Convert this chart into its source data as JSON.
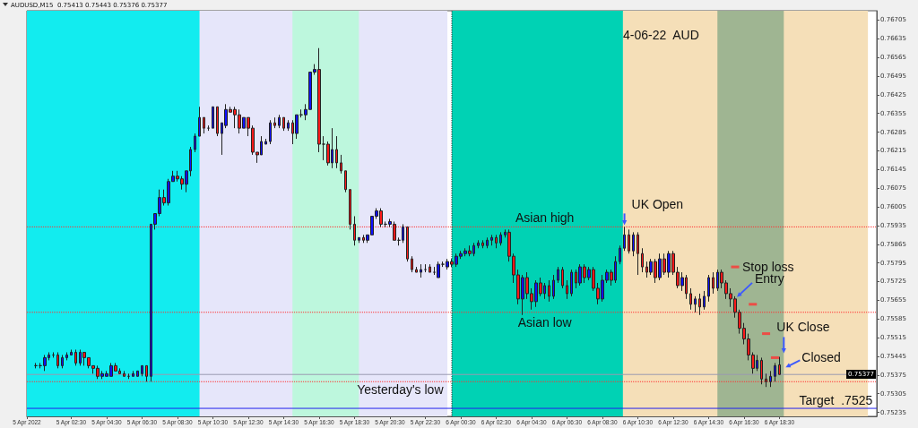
{
  "chart_data": {
    "type": "candlestick",
    "title": "4-06-22  AUD",
    "subtitle": "AUDUSD,M15  0.75413 0.75443 0.75376 0.75377",
    "x": [
      "2022-04-05T00:30",
      "2022-04-05T00:45",
      "2022-04-05T01:00",
      "2022-04-05T01:15",
      "2022-04-05T01:30",
      "2022-04-05T01:45",
      "2022-04-05T02:00",
      "2022-04-05T02:15",
      "2022-04-05T02:30",
      "2022-04-05T02:45",
      "2022-04-05T03:00",
      "2022-04-05T03:15",
      "2022-04-05T03:30",
      "2022-04-05T03:45",
      "2022-04-05T04:00",
      "2022-04-05T04:15",
      "2022-04-05T04:30",
      "2022-04-05T04:45",
      "2022-04-05T05:00",
      "2022-04-05T05:15",
      "2022-04-05T05:30",
      "2022-04-05T05:45",
      "2022-04-05T06:00",
      "2022-04-05T06:15",
      "2022-04-05T06:30",
      "2022-04-05T06:45",
      "2022-04-05T07:00",
      "2022-04-05T07:15",
      "2022-04-05T07:30",
      "2022-04-05T07:45",
      "2022-04-05T08:00",
      "2022-04-05T08:15",
      "2022-04-05T08:30",
      "2022-04-05T08:45",
      "2022-04-05T09:00",
      "2022-04-05T09:15",
      "2022-04-05T09:30",
      "2022-04-05T09:45",
      "2022-04-05T10:00",
      "2022-04-05T10:15",
      "2022-04-05T10:30",
      "2022-04-05T10:45",
      "2022-04-05T11:00",
      "2022-04-05T11:15",
      "2022-04-05T11:30",
      "2022-04-05T11:45",
      "2022-04-05T12:00",
      "2022-04-05T12:15",
      "2022-04-05T12:30",
      "2022-04-05T12:45",
      "2022-04-05T13:00",
      "2022-04-05T13:15",
      "2022-04-05T13:30",
      "2022-04-05T13:45",
      "2022-04-05T14:00",
      "2022-04-05T14:15",
      "2022-04-05T14:30",
      "2022-04-05T14:45",
      "2022-04-05T15:00",
      "2022-04-05T15:15",
      "2022-04-05T15:30",
      "2022-04-05T15:45",
      "2022-04-05T16:00",
      "2022-04-05T16:15",
      "2022-04-05T16:30",
      "2022-04-05T16:45",
      "2022-04-05T17:00",
      "2022-04-05T17:15",
      "2022-04-05T17:30",
      "2022-04-05T17:45",
      "2022-04-05T18:00",
      "2022-04-05T18:15",
      "2022-04-05T18:30",
      "2022-04-05T18:45",
      "2022-04-05T19:00",
      "2022-04-05T19:15",
      "2022-04-05T19:30",
      "2022-04-05T19:45",
      "2022-04-05T20:00",
      "2022-04-05T20:15",
      "2022-04-05T20:30",
      "2022-04-05T20:45",
      "2022-04-05T21:00",
      "2022-04-05T21:15",
      "2022-04-05T21:30",
      "2022-04-05T21:45",
      "2022-04-05T22:00",
      "2022-04-05T22:15",
      "2022-04-05T22:30",
      "2022-04-05T22:45",
      "2022-04-05T23:00",
      "2022-04-05T23:15",
      "2022-04-05T23:30",
      "2022-04-05T23:45",
      "2022-04-06T00:00",
      "2022-04-06T00:15",
      "2022-04-06T00:30",
      "2022-04-06T00:45",
      "2022-04-06T01:00",
      "2022-04-06T01:15",
      "2022-04-06T01:30",
      "2022-04-06T01:45",
      "2022-04-06T02:00",
      "2022-04-06T02:15",
      "2022-04-06T02:30",
      "2022-04-06T02:45",
      "2022-04-06T03:00",
      "2022-04-06T03:15",
      "2022-04-06T03:30",
      "2022-04-06T03:45",
      "2022-04-06T04:00",
      "2022-04-06T04:15",
      "2022-04-06T04:30",
      "2022-04-06T04:45",
      "2022-04-06T05:00",
      "2022-04-06T05:15",
      "2022-04-06T05:30",
      "2022-04-06T05:45",
      "2022-04-06T06:00",
      "2022-04-06T06:15",
      "2022-04-06T06:30",
      "2022-04-06T06:45",
      "2022-04-06T07:00",
      "2022-04-06T07:15",
      "2022-04-06T07:30",
      "2022-04-06T07:45",
      "2022-04-06T08:00",
      "2022-04-06T08:15",
      "2022-04-06T08:30",
      "2022-04-06T08:45",
      "2022-04-06T09:00",
      "2022-04-06T09:15",
      "2022-04-06T09:30",
      "2022-04-06T09:45",
      "2022-04-06T10:00",
      "2022-04-06T10:15",
      "2022-04-06T10:30",
      "2022-04-06T10:45",
      "2022-04-06T11:00",
      "2022-04-06T11:15",
      "2022-04-06T11:30",
      "2022-04-06T11:45",
      "2022-04-06T12:00",
      "2022-04-06T12:15",
      "2022-04-06T12:30",
      "2022-04-06T12:45",
      "2022-04-06T13:00",
      "2022-04-06T13:15",
      "2022-04-06T13:30",
      "2022-04-06T13:45",
      "2022-04-06T14:00",
      "2022-04-06T14:15",
      "2022-04-06T14:30",
      "2022-04-06T14:45",
      "2022-04-06T15:00",
      "2022-04-06T15:15",
      "2022-04-06T15:30",
      "2022-04-06T15:45",
      "2022-04-06T16:00",
      "2022-04-06T16:15",
      "2022-04-06T16:30",
      "2022-04-06T16:45",
      "2022-04-06T17:00",
      "2022-04-06T17:15",
      "2022-04-06T17:30",
      "2022-04-06T17:45",
      "2022-04-06T18:00",
      "2022-04-06T18:15",
      "2022-04-06T18:30"
    ],
    "series": [
      {
        "type": "candlestick",
        "ohlc": [
          [
            0.7541,
            0.7542,
            0.754,
            0.7541
          ],
          [
            0.7541,
            0.7542,
            0.754,
            0.7541
          ],
          [
            0.7541,
            0.7545,
            0.7539,
            0.7544
          ],
          [
            0.7544,
            0.7546,
            0.7543,
            0.7545
          ],
          [
            0.7545,
            0.7546,
            0.7544,
            0.7545
          ],
          [
            0.7545,
            0.7546,
            0.754,
            0.7541
          ],
          [
            0.7541,
            0.7545,
            0.754,
            0.7544
          ],
          [
            0.7544,
            0.7546,
            0.7543,
            0.7545
          ],
          [
            0.7545,
            0.7547,
            0.7545,
            0.7546
          ],
          [
            0.7546,
            0.7547,
            0.7541,
            0.7542
          ],
          [
            0.7542,
            0.7547,
            0.7541,
            0.7546
          ],
          [
            0.7546,
            0.7546,
            0.7541,
            0.7544
          ],
          [
            0.7544,
            0.7544,
            0.754,
            0.7541
          ],
          [
            0.7541,
            0.7541,
            0.7538,
            0.754
          ],
          [
            0.754,
            0.7541,
            0.7536,
            0.7537
          ],
          [
            0.7537,
            0.7539,
            0.7536,
            0.7538
          ],
          [
            0.7537,
            0.7539,
            0.7537,
            0.7538
          ],
          [
            0.7537,
            0.7542,
            0.7537,
            0.7541
          ],
          [
            0.7541,
            0.7542,
            0.7539,
            0.7539
          ],
          [
            0.7539,
            0.754,
            0.7538,
            0.7538
          ],
          [
            0.7538,
            0.7539,
            0.7537,
            0.7537
          ],
          [
            0.7537,
            0.7538,
            0.7536,
            0.7537
          ],
          [
            0.7537,
            0.7539,
            0.7537,
            0.7538
          ],
          [
            0.7537,
            0.7539,
            0.7537,
            0.7539
          ],
          [
            0.7538,
            0.7541,
            0.7537,
            0.7541
          ],
          [
            0.7541,
            0.7541,
            0.7535,
            0.7537
          ],
          [
            0.7537,
            0.7594,
            0.7535,
            0.7594
          ],
          [
            0.7594,
            0.7598,
            0.7592,
            0.7598
          ],
          [
            0.7598,
            0.7607,
            0.7597,
            0.7604
          ],
          [
            0.7604,
            0.7607,
            0.7601,
            0.7602
          ],
          [
            0.7602,
            0.7611,
            0.7601,
            0.761
          ],
          [
            0.761,
            0.7614,
            0.761,
            0.7612
          ],
          [
            0.7612,
            0.7614,
            0.761,
            0.7611
          ],
          [
            0.7611,
            0.7612,
            0.7607,
            0.7609
          ],
          [
            0.7609,
            0.7614,
            0.7606,
            0.7614
          ],
          [
            0.7614,
            0.7623,
            0.7612,
            0.7622
          ],
          [
            0.7622,
            0.7628,
            0.7621,
            0.7627
          ],
          [
            0.7627,
            0.7638,
            0.7627,
            0.7634
          ],
          [
            0.7634,
            0.7634,
            0.7628,
            0.763
          ],
          [
            0.763,
            0.7631,
            0.7629,
            0.763
          ],
          [
            0.763,
            0.7638,
            0.763,
            0.7638
          ],
          [
            0.7638,
            0.7638,
            0.7627,
            0.7628
          ],
          [
            0.7628,
            0.7632,
            0.762,
            0.7632
          ],
          [
            0.7631,
            0.7639,
            0.763,
            0.7637
          ],
          [
            0.7637,
            0.7638,
            0.7636,
            0.7636
          ],
          [
            0.7637,
            0.7638,
            0.763,
            0.7635
          ],
          [
            0.7635,
            0.7637,
            0.7628,
            0.763
          ],
          [
            0.763,
            0.7634,
            0.763,
            0.7634
          ],
          [
            0.7634,
            0.7634,
            0.7627,
            0.763
          ],
          [
            0.763,
            0.7631,
            0.762,
            0.7621
          ],
          [
            0.7621,
            0.7621,
            0.7617,
            0.762
          ],
          [
            0.762,
            0.7627,
            0.762,
            0.7625
          ],
          [
            0.7624,
            0.7626,
            0.7624,
            0.7625
          ],
          [
            0.7625,
            0.7633,
            0.7624,
            0.7632
          ],
          [
            0.7632,
            0.7634,
            0.763,
            0.7631
          ],
          [
            0.7631,
            0.7635,
            0.763,
            0.7634
          ],
          [
            0.7634,
            0.7634,
            0.7629,
            0.763
          ],
          [
            0.763,
            0.7633,
            0.7629,
            0.7632
          ],
          [
            0.7632,
            0.7633,
            0.7624,
            0.7628
          ],
          [
            0.7628,
            0.7635,
            0.7626,
            0.7635
          ],
          [
            0.7635,
            0.7637,
            0.7634,
            0.7635
          ],
          [
            0.7635,
            0.7639,
            0.7633,
            0.7637
          ],
          [
            0.7637,
            0.7651,
            0.7637,
            0.7651
          ],
          [
            0.7651,
            0.7654,
            0.765,
            0.7652
          ],
          [
            0.7652,
            0.766,
            0.7621,
            0.7624
          ],
          [
            0.7624,
            0.7627,
            0.7618,
            0.7624
          ],
          [
            0.7624,
            0.7625,
            0.7616,
            0.7617
          ],
          [
            0.7617,
            0.763,
            0.7615,
            0.7622
          ],
          [
            0.7622,
            0.7627,
            0.7615,
            0.7617
          ],
          [
            0.7617,
            0.762,
            0.7613,
            0.7614
          ],
          [
            0.7614,
            0.7614,
            0.7606,
            0.7607
          ],
          [
            0.7607,
            0.7607,
            0.7592,
            0.7594
          ],
          [
            0.7594,
            0.7597,
            0.7586,
            0.7588
          ],
          [
            0.7588,
            0.7589,
            0.7587,
            0.7589
          ],
          [
            0.7589,
            0.759,
            0.7587,
            0.7588
          ],
          [
            0.7588,
            0.759,
            0.7587,
            0.759
          ],
          [
            0.759,
            0.7597,
            0.759,
            0.7597
          ],
          [
            0.7597,
            0.76,
            0.7596,
            0.7599
          ],
          [
            0.7599,
            0.76,
            0.7593,
            0.7594
          ],
          [
            0.7594,
            0.7595,
            0.7593,
            0.7594
          ],
          [
            0.7594,
            0.7596,
            0.7593,
            0.7595
          ],
          [
            0.7594,
            0.7595,
            0.7588,
            0.7588
          ],
          [
            0.7588,
            0.7589,
            0.7586,
            0.7588
          ],
          [
            0.7588,
            0.7594,
            0.7587,
            0.7593
          ],
          [
            0.7593,
            0.7593,
            0.758,
            0.7581
          ],
          [
            0.7581,
            0.7582,
            0.7576,
            0.7577
          ],
          [
            0.7577,
            0.7578,
            0.7576,
            0.7576
          ],
          [
            0.7576,
            0.7579,
            0.7574,
            0.7577
          ],
          [
            0.7577,
            0.7579,
            0.7576,
            0.7577
          ],
          [
            0.7578,
            0.7579,
            0.7576,
            0.7576
          ],
          [
            0.7576,
            0.7578,
            0.7575,
            0.7576
          ],
          [
            0.7574,
            0.758,
            0.7574,
            0.7579
          ],
          [
            0.7579,
            0.758,
            0.7578,
            0.7579
          ],
          [
            0.7578,
            0.7581,
            0.7577,
            0.758
          ],
          [
            0.758,
            0.7581,
            0.7578,
            0.7579
          ],
          [
            0.7579,
            0.7583,
            0.7578,
            0.7582
          ],
          [
            0.7582,
            0.7584,
            0.7581,
            0.7583
          ],
          [
            0.7583,
            0.7585,
            0.7582,
            0.7584
          ],
          [
            0.7584,
            0.7586,
            0.7582,
            0.7583
          ],
          [
            0.7583,
            0.7587,
            0.7582,
            0.7586
          ],
          [
            0.7586,
            0.7588,
            0.7585,
            0.7587
          ],
          [
            0.7587,
            0.7588,
            0.7585,
            0.7586
          ],
          [
            0.7586,
            0.7589,
            0.7585,
            0.7588
          ],
          [
            0.7588,
            0.759,
            0.7586,
            0.7589
          ],
          [
            0.7589,
            0.759,
            0.7585,
            0.7587
          ],
          [
            0.7587,
            0.7591,
            0.7586,
            0.759
          ],
          [
            0.759,
            0.7592,
            0.7589,
            0.7591
          ],
          [
            0.7591,
            0.7592,
            0.758,
            0.7582
          ],
          [
            0.7582,
            0.7583,
            0.7572,
            0.7575
          ],
          [
            0.7575,
            0.7577,
            0.7564,
            0.7566
          ],
          [
            0.7566,
            0.7575,
            0.756,
            0.7574
          ],
          [
            0.7574,
            0.7576,
            0.7566,
            0.7568
          ],
          [
            0.7568,
            0.757,
            0.7562,
            0.7565
          ],
          [
            0.7565,
            0.7573,
            0.7563,
            0.7572
          ],
          [
            0.7572,
            0.7574,
            0.7567,
            0.7568
          ],
          [
            0.7568,
            0.7572,
            0.7566,
            0.7571
          ],
          [
            0.7571,
            0.7573,
            0.7565,
            0.7567
          ],
          [
            0.7567,
            0.7575,
            0.7566,
            0.7573
          ],
          [
            0.7573,
            0.7578,
            0.7572,
            0.7577
          ],
          [
            0.7577,
            0.7578,
            0.757,
            0.7571
          ],
          [
            0.7571,
            0.7573,
            0.7566,
            0.7568
          ],
          [
            0.7568,
            0.7577,
            0.7567,
            0.7576
          ],
          [
            0.7576,
            0.7577,
            0.757,
            0.7572
          ],
          [
            0.7572,
            0.7579,
            0.7571,
            0.7578
          ],
          [
            0.7578,
            0.7579,
            0.7572,
            0.7574
          ],
          [
            0.7574,
            0.7578,
            0.7573,
            0.7577
          ],
          [
            0.7577,
            0.7578,
            0.7569,
            0.757
          ],
          [
            0.757,
            0.7572,
            0.7564,
            0.7566
          ],
          [
            0.7566,
            0.7575,
            0.7565,
            0.7573
          ],
          [
            0.7573,
            0.7577,
            0.7572,
            0.7576
          ],
          [
            0.7576,
            0.7577,
            0.7571,
            0.7573
          ],
          [
            0.7573,
            0.7582,
            0.7572,
            0.758
          ],
          [
            0.758,
            0.7586,
            0.7579,
            0.7585
          ],
          [
            0.7585,
            0.7593,
            0.7584,
            0.759
          ],
          [
            0.759,
            0.7592,
            0.7583,
            0.7584
          ],
          [
            0.7584,
            0.7591,
            0.7582,
            0.759
          ],
          [
            0.759,
            0.7591,
            0.7575,
            0.7583
          ],
          [
            0.7583,
            0.7585,
            0.7576,
            0.7578
          ],
          [
            0.7578,
            0.758,
            0.7574,
            0.7576
          ],
          [
            0.7576,
            0.7581,
            0.7575,
            0.758
          ],
          [
            0.758,
            0.7581,
            0.7572,
            0.7574
          ],
          [
            0.7574,
            0.7583,
            0.7573,
            0.7581
          ],
          [
            0.7581,
            0.7583,
            0.7575,
            0.7576
          ],
          [
            0.7576,
            0.7584,
            0.7574,
            0.7583
          ],
          [
            0.7583,
            0.7584,
            0.7575,
            0.7576
          ],
          [
            0.7576,
            0.7578,
            0.757,
            0.7571
          ],
          [
            0.7571,
            0.7576,
            0.7569,
            0.7574
          ],
          [
            0.7574,
            0.7575,
            0.7566,
            0.7568
          ],
          [
            0.7568,
            0.757,
            0.7562,
            0.7564
          ],
          [
            0.7564,
            0.7567,
            0.7561,
            0.7566
          ],
          [
            0.7566,
            0.7568,
            0.756,
            0.7563
          ],
          [
            0.7563,
            0.7569,
            0.7562,
            0.7567
          ],
          [
            0.7567,
            0.7575,
            0.7565,
            0.7574
          ],
          [
            0.7574,
            0.7576,
            0.7568,
            0.757
          ],
          [
            0.757,
            0.7577,
            0.7569,
            0.7576
          ],
          [
            0.7576,
            0.7577,
            0.757,
            0.7572
          ],
          [
            0.7572,
            0.7573,
            0.7566,
            0.7568
          ],
          [
            0.7568,
            0.757,
            0.7563,
            0.7566
          ],
          [
            0.7566,
            0.7567,
            0.7559,
            0.7561
          ],
          [
            0.7561,
            0.7562,
            0.7553,
            0.7555
          ],
          [
            0.7555,
            0.7557,
            0.7549,
            0.7551
          ],
          [
            0.7551,
            0.7553,
            0.7543,
            0.7545
          ],
          [
            0.7545,
            0.7546,
            0.7538,
            0.754
          ],
          [
            0.754,
            0.7545,
            0.7539,
            0.7543
          ],
          [
            0.7543,
            0.7544,
            0.7534,
            0.7536
          ],
          [
            0.7536,
            0.7538,
            0.7533,
            0.7535
          ],
          [
            0.7535,
            0.7539,
            0.7533,
            0.7537
          ],
          [
            0.7537,
            0.7542,
            0.7535,
            0.7541
          ],
          [
            0.75413,
            0.75443,
            0.75376,
            0.75377
          ]
        ]
      },
      {
        "type": "scatter",
        "x": [
          "2022-04-06T16:00",
          "2022-04-06T17:00",
          "2022-04-06T17:45",
          "2022-04-06T18:15"
        ],
        "values": [
          0.7578,
          0.7564,
          0.7553,
          0.7544
        ],
        "color": "#ff3333",
        "marker": "square"
      }
    ],
    "xlim": [
      "2022-04-05T00:00",
      "2022-04-07T00:00"
    ],
    "xticks": [
      {
        "value": "2022-04-05T00:00",
        "label": "5 Apr 2022"
      },
      {
        "value": "2022-04-05T02:30",
        "label": "5 Apr 02:30"
      },
      {
        "value": "2022-04-05T04:30",
        "label": "5 Apr 04:30"
      },
      {
        "value": "2022-04-05T06:30",
        "label": "5 Apr 06:30"
      },
      {
        "value": "2022-04-05T08:30",
        "label": "5 Apr 08:30"
      },
      {
        "value": "2022-04-05T10:30",
        "label": "5 Apr 10:30"
      },
      {
        "value": "2022-04-05T12:30",
        "label": "5 Apr 12:30"
      },
      {
        "value": "2022-04-05T14:30",
        "label": "5 Apr 14:30"
      },
      {
        "value": "2022-04-05T16:30",
        "label": "5 Apr 16:30"
      },
      {
        "value": "2022-04-05T18:30",
        "label": "5 Apr 18:30"
      },
      {
        "value": "2022-04-05T20:30",
        "label": "5 Apr 20:30"
      },
      {
        "value": "2022-04-05T22:30",
        "label": "5 Apr 22:30"
      },
      {
        "value": "2022-04-06T00:30",
        "label": "6 Apr 00:30"
      },
      {
        "value": "2022-04-06T02:30",
        "label": "6 Apr 02:30"
      },
      {
        "value": "2022-04-06T04:30",
        "label": "6 Apr 04:30"
      },
      {
        "value": "2022-04-06T06:30",
        "label": "6 Apr 06:30"
      },
      {
        "value": "2022-04-06T08:30",
        "label": "6 Apr 08:30"
      },
      {
        "value": "2022-04-06T10:30",
        "label": "6 Apr 10:30"
      },
      {
        "value": "2022-04-06T12:30",
        "label": "6 Apr 12:30"
      },
      {
        "value": "2022-04-06T14:30",
        "label": "6 Apr 14:30"
      },
      {
        "value": "2022-04-06T16:30",
        "label": "6 Apr 16:30"
      },
      {
        "value": "2022-04-06T18:30",
        "label": "6 Apr 18:30"
      }
    ],
    "ylim": [
      0.7522,
      0.7674
    ],
    "yticks": [
      0.75235,
      0.75305,
      0.75375,
      0.75445,
      0.75515,
      0.75585,
      0.75655,
      0.75725,
      0.75795,
      0.75865,
      0.75935,
      0.76005,
      0.76075,
      0.76145,
      0.76215,
      0.76285,
      0.76355,
      0.76425,
      0.76495,
      0.76565,
      0.76635,
      0.76705
    ],
    "bands": [
      {
        "axis": "x",
        "from": "2022-04-05T00:00",
        "to": "2022-04-05T23:45",
        "color": "#e6e6fa"
      },
      {
        "axis": "x",
        "from": "2022-04-05T00:00",
        "to": "2022-04-05T09:45",
        "color": "#12ecef"
      },
      {
        "axis": "x",
        "from": "2022-04-05T15:00",
        "to": "2022-04-05T18:45",
        "color": "#bdf7dd"
      },
      {
        "axis": "x",
        "from": "2022-04-06T00:00",
        "to": "2022-04-06T09:40",
        "color": "#00d2b4"
      },
      {
        "axis": "x",
        "from": "2022-04-06T09:40",
        "to": "2022-04-06T23:30",
        "color": "#f5dfb8"
      },
      {
        "axis": "x",
        "from": "2022-04-06T15:00",
        "to": "2022-04-06T18:45",
        "color": "#9fb592"
      }
    ],
    "ref_lines": [
      {
        "axis": "x",
        "value": "2022-04-06T00:00",
        "color": "#333333",
        "line_style": "dotted"
      },
      {
        "axis": "y",
        "value": 0.7593,
        "color": "#ff3333",
        "line_style": "dotted"
      },
      {
        "axis": "y",
        "value": 0.7561,
        "color": "#ff3333",
        "line_style": "dotted"
      },
      {
        "axis": "y",
        "value": 0.7535,
        "label": "Yesterday's low",
        "color": "#ff3333",
        "line_style": "dotted"
      },
      {
        "axis": "y",
        "value": 0.75377,
        "label": "0.75377",
        "color": "#9a9ab0",
        "line_style": "solid"
      },
      {
        "axis": "y",
        "value": 0.7525,
        "label": "Target  .7525",
        "color": "#2222ee",
        "line_style": "solid"
      }
    ],
    "annotations": [
      {
        "text": "Asian high",
        "x": "2022-04-06T05:15",
        "y": 0.7593
      },
      {
        "text": "Asian low",
        "x": "2022-04-06T05:15",
        "y": 0.7561
      },
      {
        "text": "UK Open",
        "x": "2022-04-06T09:45",
        "y": 0.7593
      },
      {
        "text": "Stop loss",
        "x": "2022-04-06T16:00",
        "y": 0.7578
      },
      {
        "text": "Entry",
        "x": "2022-04-06T16:00",
        "y": 0.7566
      },
      {
        "text": "UK Close",
        "x": "2022-04-06T18:45",
        "y": 0.7545
      },
      {
        "text": "Closed",
        "x": "2022-04-06T18:45",
        "y": 0.754
      }
    ]
  }
}
